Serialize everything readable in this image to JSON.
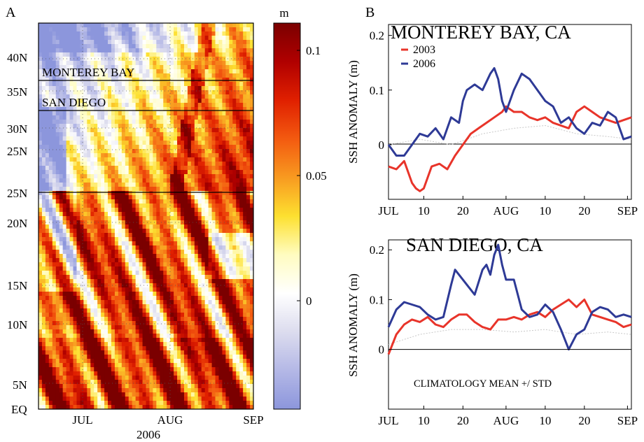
{
  "panel_a": {
    "letter": "A",
    "year_label": "2006",
    "y_ticks": [
      "EQ",
      "5N",
      "10N",
      "15N",
      "20N",
      "25N",
      "25N",
      "30N",
      "35N",
      "40N"
    ],
    "x_ticks": [
      "JUL",
      "AUG",
      "SEP"
    ],
    "region_labels": [
      "MONTEREY BAY",
      "SAN DIEGO"
    ],
    "colorbar": {
      "unit": "m",
      "ticks": [
        "0.1",
        "0.05",
        "0"
      ],
      "colors": [
        "#7b0000",
        "#b00000",
        "#e02000",
        "#f35a10",
        "#f89a20",
        "#fde030",
        "#fffcc0",
        "#ffffff",
        "#dcdcee",
        "#b4b8e6",
        "#8c96dc"
      ]
    }
  },
  "panel_b": {
    "letter": "B",
    "series_colors": {
      "2003": "#e8342a",
      "2006": "#2e3a96",
      "climatology": "#c8c8c8"
    }
  },
  "chart_data": [
    {
      "type": "heatmap",
      "title": "",
      "xlabel": "2006",
      "ylabel": "",
      "x_ticks": [
        "JUL",
        "AUG",
        "SEP"
      ],
      "y_ticks": [
        "EQ",
        "5N",
        "10N",
        "15N",
        "20N",
        "25N",
        "25N",
        "30N",
        "35N",
        "40N"
      ],
      "colorbar_label": "m",
      "colorbar_range": [
        -0.04,
        0.115
      ],
      "colorbar_ticks": [
        0,
        0.05,
        0.1
      ],
      "annotations": [
        "MONTEREY BAY",
        "SAN DIEGO"
      ]
    },
    {
      "type": "line",
      "title": "MONTEREY BAY, CA",
      "xlabel": "",
      "ylabel": "SSH ANOMALY (m)",
      "x_ticks": [
        "JUL",
        "10",
        "20",
        "AUG",
        "10",
        "20",
        "SEP"
      ],
      "y_ticks": [
        "0",
        "0.1",
        "0.2"
      ],
      "ylim": [
        -0.1,
        0.22
      ],
      "x_days": [
        0,
        62
      ],
      "legend": [
        "2003",
        "2006"
      ],
      "series": [
        {
          "name": "2003",
          "x": [
            0,
            2,
            4,
            6,
            7,
            8,
            9,
            10,
            11,
            13,
            15,
            17,
            19,
            21,
            23,
            25,
            27,
            29,
            30,
            32,
            34,
            36,
            38,
            40,
            42,
            44,
            46,
            48,
            50,
            52,
            54,
            56,
            58,
            60,
            62
          ],
          "y": [
            -0.04,
            -0.045,
            -0.03,
            -0.07,
            -0.08,
            -0.085,
            -0.08,
            -0.06,
            -0.04,
            -0.035,
            -0.045,
            -0.02,
            0.0,
            0.02,
            0.03,
            0.04,
            0.05,
            0.06,
            0.07,
            0.06,
            0.06,
            0.05,
            0.045,
            0.05,
            0.04,
            0.035,
            0.03,
            0.06,
            0.07,
            0.06,
            0.05,
            0.045,
            0.04,
            0.045,
            0.05
          ]
        },
        {
          "name": "2006",
          "x": [
            0,
            2,
            4,
            6,
            8,
            10,
            12,
            14,
            16,
            18,
            19,
            20,
            22,
            24,
            26,
            27,
            28,
            29,
            30,
            32,
            34,
            36,
            38,
            40,
            42,
            44,
            46,
            48,
            50,
            52,
            54,
            56,
            58,
            60,
            62
          ],
          "y": [
            0.0,
            -0.02,
            -0.02,
            0.0,
            0.02,
            0.015,
            0.03,
            0.01,
            0.05,
            0.04,
            0.08,
            0.1,
            0.11,
            0.1,
            0.13,
            0.14,
            0.12,
            0.08,
            0.06,
            0.1,
            0.13,
            0.12,
            0.1,
            0.08,
            0.07,
            0.04,
            0.05,
            0.03,
            0.02,
            0.04,
            0.035,
            0.06,
            0.05,
            0.01,
            0.015
          ]
        }
      ],
      "climatology": {
        "x": [
          0,
          8,
          16,
          24,
          32,
          40,
          48,
          56,
          62
        ],
        "y": [
          0.0,
          0.01,
          0.0,
          0.02,
          0.03,
          0.035,
          0.02,
          0.015,
          0.01
        ]
      }
    },
    {
      "type": "line",
      "title": "SAN DIEGO, CA",
      "xlabel": "",
      "ylabel": "SSH ANOMALY (m)",
      "x_ticks": [
        "JUL",
        "10",
        "20",
        "AUG",
        "10",
        "20",
        "SEP"
      ],
      "y_ticks": [
        "0",
        "0.1",
        "0.2"
      ],
      "ylim": [
        -0.12,
        0.22
      ],
      "x_days": [
        0,
        62
      ],
      "annotation": "CLIMATOLOGY MEAN +/ STD",
      "series": [
        {
          "name": "2003",
          "x": [
            0,
            2,
            4,
            6,
            8,
            10,
            12,
            14,
            16,
            18,
            20,
            22,
            24,
            26,
            28,
            30,
            32,
            34,
            36,
            38,
            40,
            42,
            44,
            46,
            48,
            50,
            52,
            54,
            56,
            58,
            60,
            62
          ],
          "y": [
            -0.01,
            0.03,
            0.05,
            0.06,
            0.055,
            0.065,
            0.05,
            0.045,
            0.06,
            0.07,
            0.07,
            0.055,
            0.045,
            0.04,
            0.06,
            0.06,
            0.065,
            0.06,
            0.07,
            0.075,
            0.065,
            0.08,
            0.09,
            0.1,
            0.085,
            0.1,
            0.07,
            0.065,
            0.06,
            0.055,
            0.045,
            0.05
          ]
        },
        {
          "name": "2006",
          "x": [
            0,
            2,
            4,
            6,
            8,
            10,
            12,
            14,
            16,
            17,
            18,
            20,
            22,
            24,
            25,
            26,
            27,
            28,
            29,
            30,
            32,
            34,
            36,
            38,
            40,
            42,
            44,
            46,
            48,
            50,
            52,
            54,
            56,
            58,
            60,
            62
          ],
          "y": [
            0.045,
            0.08,
            0.095,
            0.09,
            0.085,
            0.07,
            0.06,
            0.065,
            0.13,
            0.16,
            0.15,
            0.13,
            0.11,
            0.16,
            0.17,
            0.15,
            0.19,
            0.21,
            0.17,
            0.14,
            0.14,
            0.08,
            0.065,
            0.07,
            0.09,
            0.075,
            0.04,
            0.0,
            0.03,
            0.04,
            0.075,
            0.085,
            0.08,
            0.065,
            0.07,
            0.065
          ]
        }
      ],
      "climatology": {
        "x": [
          0,
          8,
          16,
          24,
          32,
          40,
          48,
          56,
          62
        ],
        "y": [
          0.01,
          0.03,
          0.04,
          0.04,
          0.035,
          0.04,
          0.03,
          0.035,
          0.03
        ]
      }
    }
  ]
}
